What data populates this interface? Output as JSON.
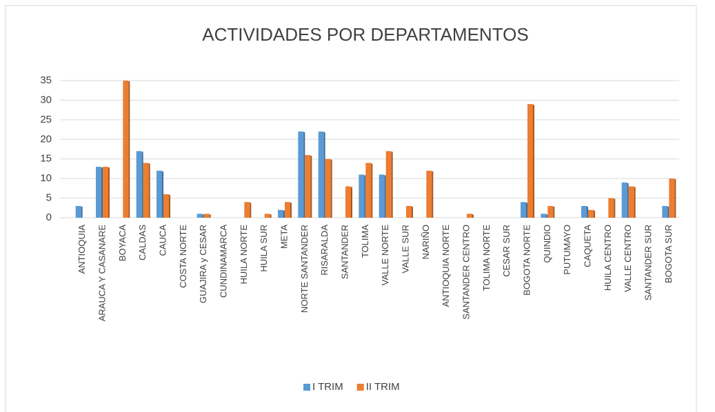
{
  "chart_data": {
    "type": "bar",
    "title": "ACTIVIDADES POR DEPARTAMENTOS",
    "categories": [
      "ANTIOQUIA",
      "ARAUCA Y CASANARE",
      "BOYACA",
      "CALDAS",
      "CAUCA",
      "COSTA NORTE",
      "GUAJIRA y CESAR",
      "CUNDINAMARCA",
      "HUILA NORTE",
      "HUILA SUR",
      "META",
      "NORTE SANTANDER",
      "RISARALDA",
      "SANTANDER",
      "TOLIMA",
      "VALLE NORTE",
      "VALLE SUR",
      "NARIÑO",
      "ANTIOQUIA NORTE",
      "SANTANDER CENTRO",
      "TOLIMA NORTE",
      "CESAR SUR",
      "BOGOTA NORTE",
      "QUINDIO",
      "PUTUMAYO",
      "CAQUETA",
      "HUILA CENTRO",
      "VALLE CENTRO",
      "SANTANDER SUR",
      "BOGOTA SUR"
    ],
    "series": [
      {
        "name": "I TRIM",
        "color": "#5b9bd5",
        "values": [
          3,
          13,
          0,
          17,
          12,
          0,
          1,
          0,
          0,
          0,
          2,
          22,
          22,
          0,
          11,
          11,
          0,
          0,
          0,
          0,
          0,
          0,
          4,
          1,
          0,
          3,
          0,
          9,
          0,
          3
        ]
      },
      {
        "name": "II TRIM",
        "color": "#ed7d31",
        "values": [
          0,
          13,
          35,
          14,
          6,
          0,
          1,
          0,
          4,
          1,
          4,
          16,
          15,
          8,
          14,
          17,
          3,
          12,
          0,
          1,
          0,
          0,
          29,
          3,
          0,
          2,
          5,
          8,
          0,
          10
        ]
      }
    ],
    "ylim": [
      0,
      35
    ],
    "yticks": [
      0,
      5,
      10,
      15,
      20,
      25,
      30,
      35
    ],
    "grid": true,
    "legend": "bottom"
  }
}
